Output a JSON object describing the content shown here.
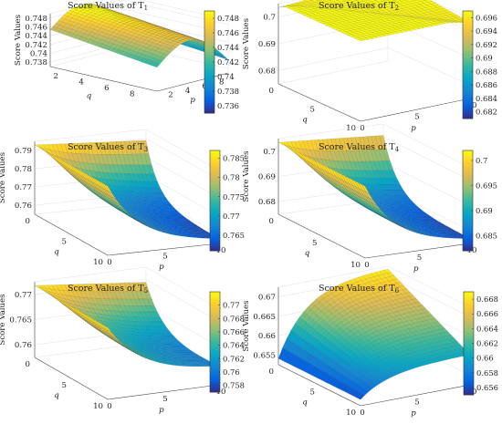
{
  "chart_data": [
    {
      "type": "surface",
      "title": "Score Values of T",
      "title_sub": "1",
      "zlabel": "Score Values",
      "xlabel": "p",
      "ylabel": "q",
      "z_ticks": [
        "0.738",
        "0.74",
        "0.742",
        "0.744",
        "0.746",
        "0.748"
      ],
      "x_ticks": [
        "2",
        "4",
        "6",
        "8"
      ],
      "y_ticks": [
        "2",
        "4",
        "6",
        "8"
      ],
      "colorbar_ticks": [
        "0.736",
        "0.738",
        "0.74",
        "0.742",
        "0.744",
        "0.746",
        "0.748"
      ],
      "colorbar_range": [
        0.735,
        0.749
      ],
      "colormap": "parula"
    },
    {
      "type": "surface",
      "title": "Score Values of T",
      "title_sub": "2",
      "zlabel": "Score Values",
      "xlabel": "p",
      "ylabel": "q",
      "z_ticks": [
        "0.68",
        "0.69",
        "0.7"
      ],
      "x_ticks": [
        "0",
        "5",
        "10"
      ],
      "y_ticks": [
        "0",
        "5",
        "10"
      ],
      "colorbar_ticks": [
        "0.682",
        "0.684",
        "0.686",
        "0.688",
        "0.69",
        "0.692",
        "0.694",
        "0.696"
      ],
      "colorbar_range": [
        0.681,
        0.697
      ],
      "colormap": "parula"
    },
    {
      "type": "surface",
      "title": "Score Values of T",
      "title_sub": "3",
      "zlabel": "Score Values",
      "xlabel": "p",
      "ylabel": "q",
      "z_ticks": [
        "0.76",
        "0.77",
        "0.78",
        "0.79"
      ],
      "x_ticks": [
        "0",
        "5",
        "10"
      ],
      "y_ticks": [
        "0",
        "5",
        "10"
      ],
      "colorbar_ticks": [
        "0.765",
        "0.77",
        "0.775",
        "0.78",
        "0.785"
      ],
      "colorbar_range": [
        0.761,
        0.787
      ],
      "colormap": "parula"
    },
    {
      "type": "surface",
      "title": "Score Values of T",
      "title_sub": "4",
      "zlabel": "Score Values",
      "xlabel": "p",
      "ylabel": "q",
      "z_ticks": [
        "0.68",
        "0.69",
        "0.7"
      ],
      "x_ticks": [
        "0",
        "5",
        "10"
      ],
      "y_ticks": [
        "0",
        "5",
        "10"
      ],
      "colorbar_ticks": [
        "0.685",
        "0.69",
        "0.695",
        "0.7"
      ],
      "colorbar_range": [
        0.682,
        0.702
      ],
      "colormap": "parula"
    },
    {
      "type": "surface",
      "title": "Score Values of T",
      "title_sub": "5",
      "zlabel": "Score Values",
      "xlabel": "p",
      "ylabel": "q",
      "z_ticks": [
        "0.76",
        "0.765",
        "0.77"
      ],
      "x_ticks": [
        "0",
        "5",
        "10"
      ],
      "y_ticks": [
        "0",
        "5",
        "10"
      ],
      "colorbar_ticks": [
        "0.758",
        "0.76",
        "0.762",
        "0.764",
        "0.766",
        "0.768",
        "0.77"
      ],
      "colorbar_range": [
        0.757,
        0.772
      ],
      "colormap": "parula"
    },
    {
      "type": "surface",
      "title": "Score Values of T",
      "title_sub": "6",
      "zlabel": "Score Values",
      "xlabel": "p",
      "ylabel": "q",
      "z_ticks": [
        "0.655",
        "0.66",
        "0.665",
        "0.67"
      ],
      "x_ticks": [
        "0",
        "5",
        "10"
      ],
      "y_ticks": [
        "0",
        "5",
        "10"
      ],
      "colorbar_ticks": [
        "0.656",
        "0.658",
        "0.66",
        "0.662",
        "0.664",
        "0.666",
        "0.668"
      ],
      "colorbar_range": [
        0.655,
        0.669
      ],
      "colormap": "parula"
    }
  ]
}
